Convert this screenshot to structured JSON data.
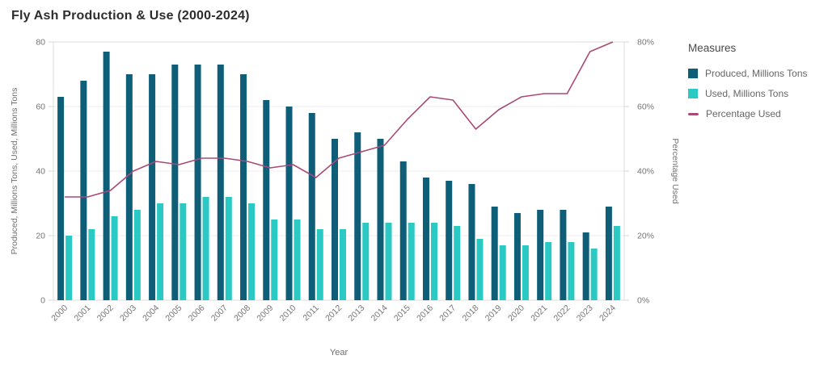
{
  "title": "Fly Ash Production & Use (2000-2024)",
  "legend": {
    "title": "Measures",
    "items": [
      {
        "label": "Produced, Millions Tons",
        "swatch": "square",
        "color": "#0e5e78"
      },
      {
        "label": "Used, Millions Tons",
        "swatch": "square",
        "color": "#2bc9c4"
      },
      {
        "label": "Percentage Used",
        "swatch": "line",
        "color": "#a84a76"
      }
    ]
  },
  "chart_data": {
    "type": "bar",
    "subtype": "dual-axis bar+line",
    "title": "Fly Ash Production & Use (2000-2024)",
    "categories": [
      "2000",
      "2001",
      "2002",
      "2003",
      "2004",
      "2005",
      "2006",
      "2007",
      "2008",
      "2009",
      "2010",
      "2011",
      "2012",
      "2013",
      "2014",
      "2015",
      "2016",
      "2017",
      "2018",
      "2019",
      "2020",
      "2021",
      "2022",
      "2023",
      "2024"
    ],
    "series": [
      {
        "name": "Produced, Millions Tons",
        "type": "bar",
        "axis": "left",
        "color": "#0e5e78",
        "values": [
          63,
          68,
          77,
          70,
          70,
          73,
          73,
          73,
          70,
          62,
          60,
          58,
          50,
          52,
          50,
          43,
          38,
          37,
          36,
          29,
          27,
          28,
          28,
          21,
          29
        ]
      },
      {
        "name": "Used, Millions Tons",
        "type": "bar",
        "axis": "left",
        "color": "#2bc9c4",
        "values": [
          20,
          22,
          26,
          28,
          30,
          30,
          32,
          32,
          30,
          25,
          25,
          22,
          22,
          24,
          24,
          24,
          24,
          23,
          19,
          17,
          17,
          18,
          18,
          16,
          23
        ]
      },
      {
        "name": "Percentage Used",
        "type": "line",
        "axis": "right",
        "color": "#a84a76",
        "values": [
          32,
          32,
          34,
          40,
          43,
          42,
          44,
          44,
          43,
          41,
          42,
          38,
          44,
          46,
          48,
          56,
          63,
          62,
          53,
          59,
          63,
          64,
          64,
          77,
          80
        ]
      }
    ],
    "xlabel": "Year",
    "ylabel_left": "Produced, Millions Tons, Used, Millions Tons",
    "ylabel_right": "Percentage Used",
    "ylim_left": [
      0,
      80
    ],
    "ylim_right": [
      0,
      80
    ],
    "yticks_left": [
      "0",
      "20",
      "40",
      "60",
      "80"
    ],
    "yticks_right": [
      "0%",
      "20%",
      "40%",
      "60%",
      "80%"
    ],
    "grid": true,
    "legend_position": "right"
  }
}
